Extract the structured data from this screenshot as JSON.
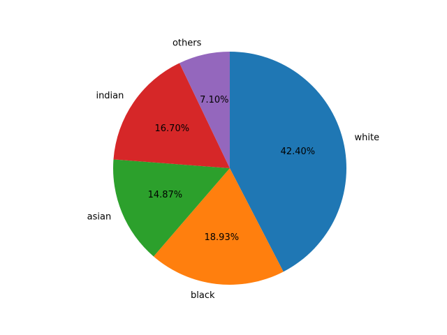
{
  "chart_data": {
    "type": "pie",
    "title": "",
    "start_angle_deg": 90,
    "counterclock": false,
    "slices": [
      {
        "label": "white",
        "value": 42.4,
        "pct_text": "42.40%",
        "color": "#1f77b4"
      },
      {
        "label": "black",
        "value": 18.93,
        "pct_text": "18.93%",
        "color": "#ff7f0e"
      },
      {
        "label": "asian",
        "value": 14.87,
        "pct_text": "14.87%",
        "color": "#2ca02c"
      },
      {
        "label": "indian",
        "value": 16.7,
        "pct_text": "16.70%",
        "color": "#d62728"
      },
      {
        "label": "others",
        "value": 7.1,
        "pct_text": "7.10%",
        "color": "#9467bd"
      }
    ]
  }
}
